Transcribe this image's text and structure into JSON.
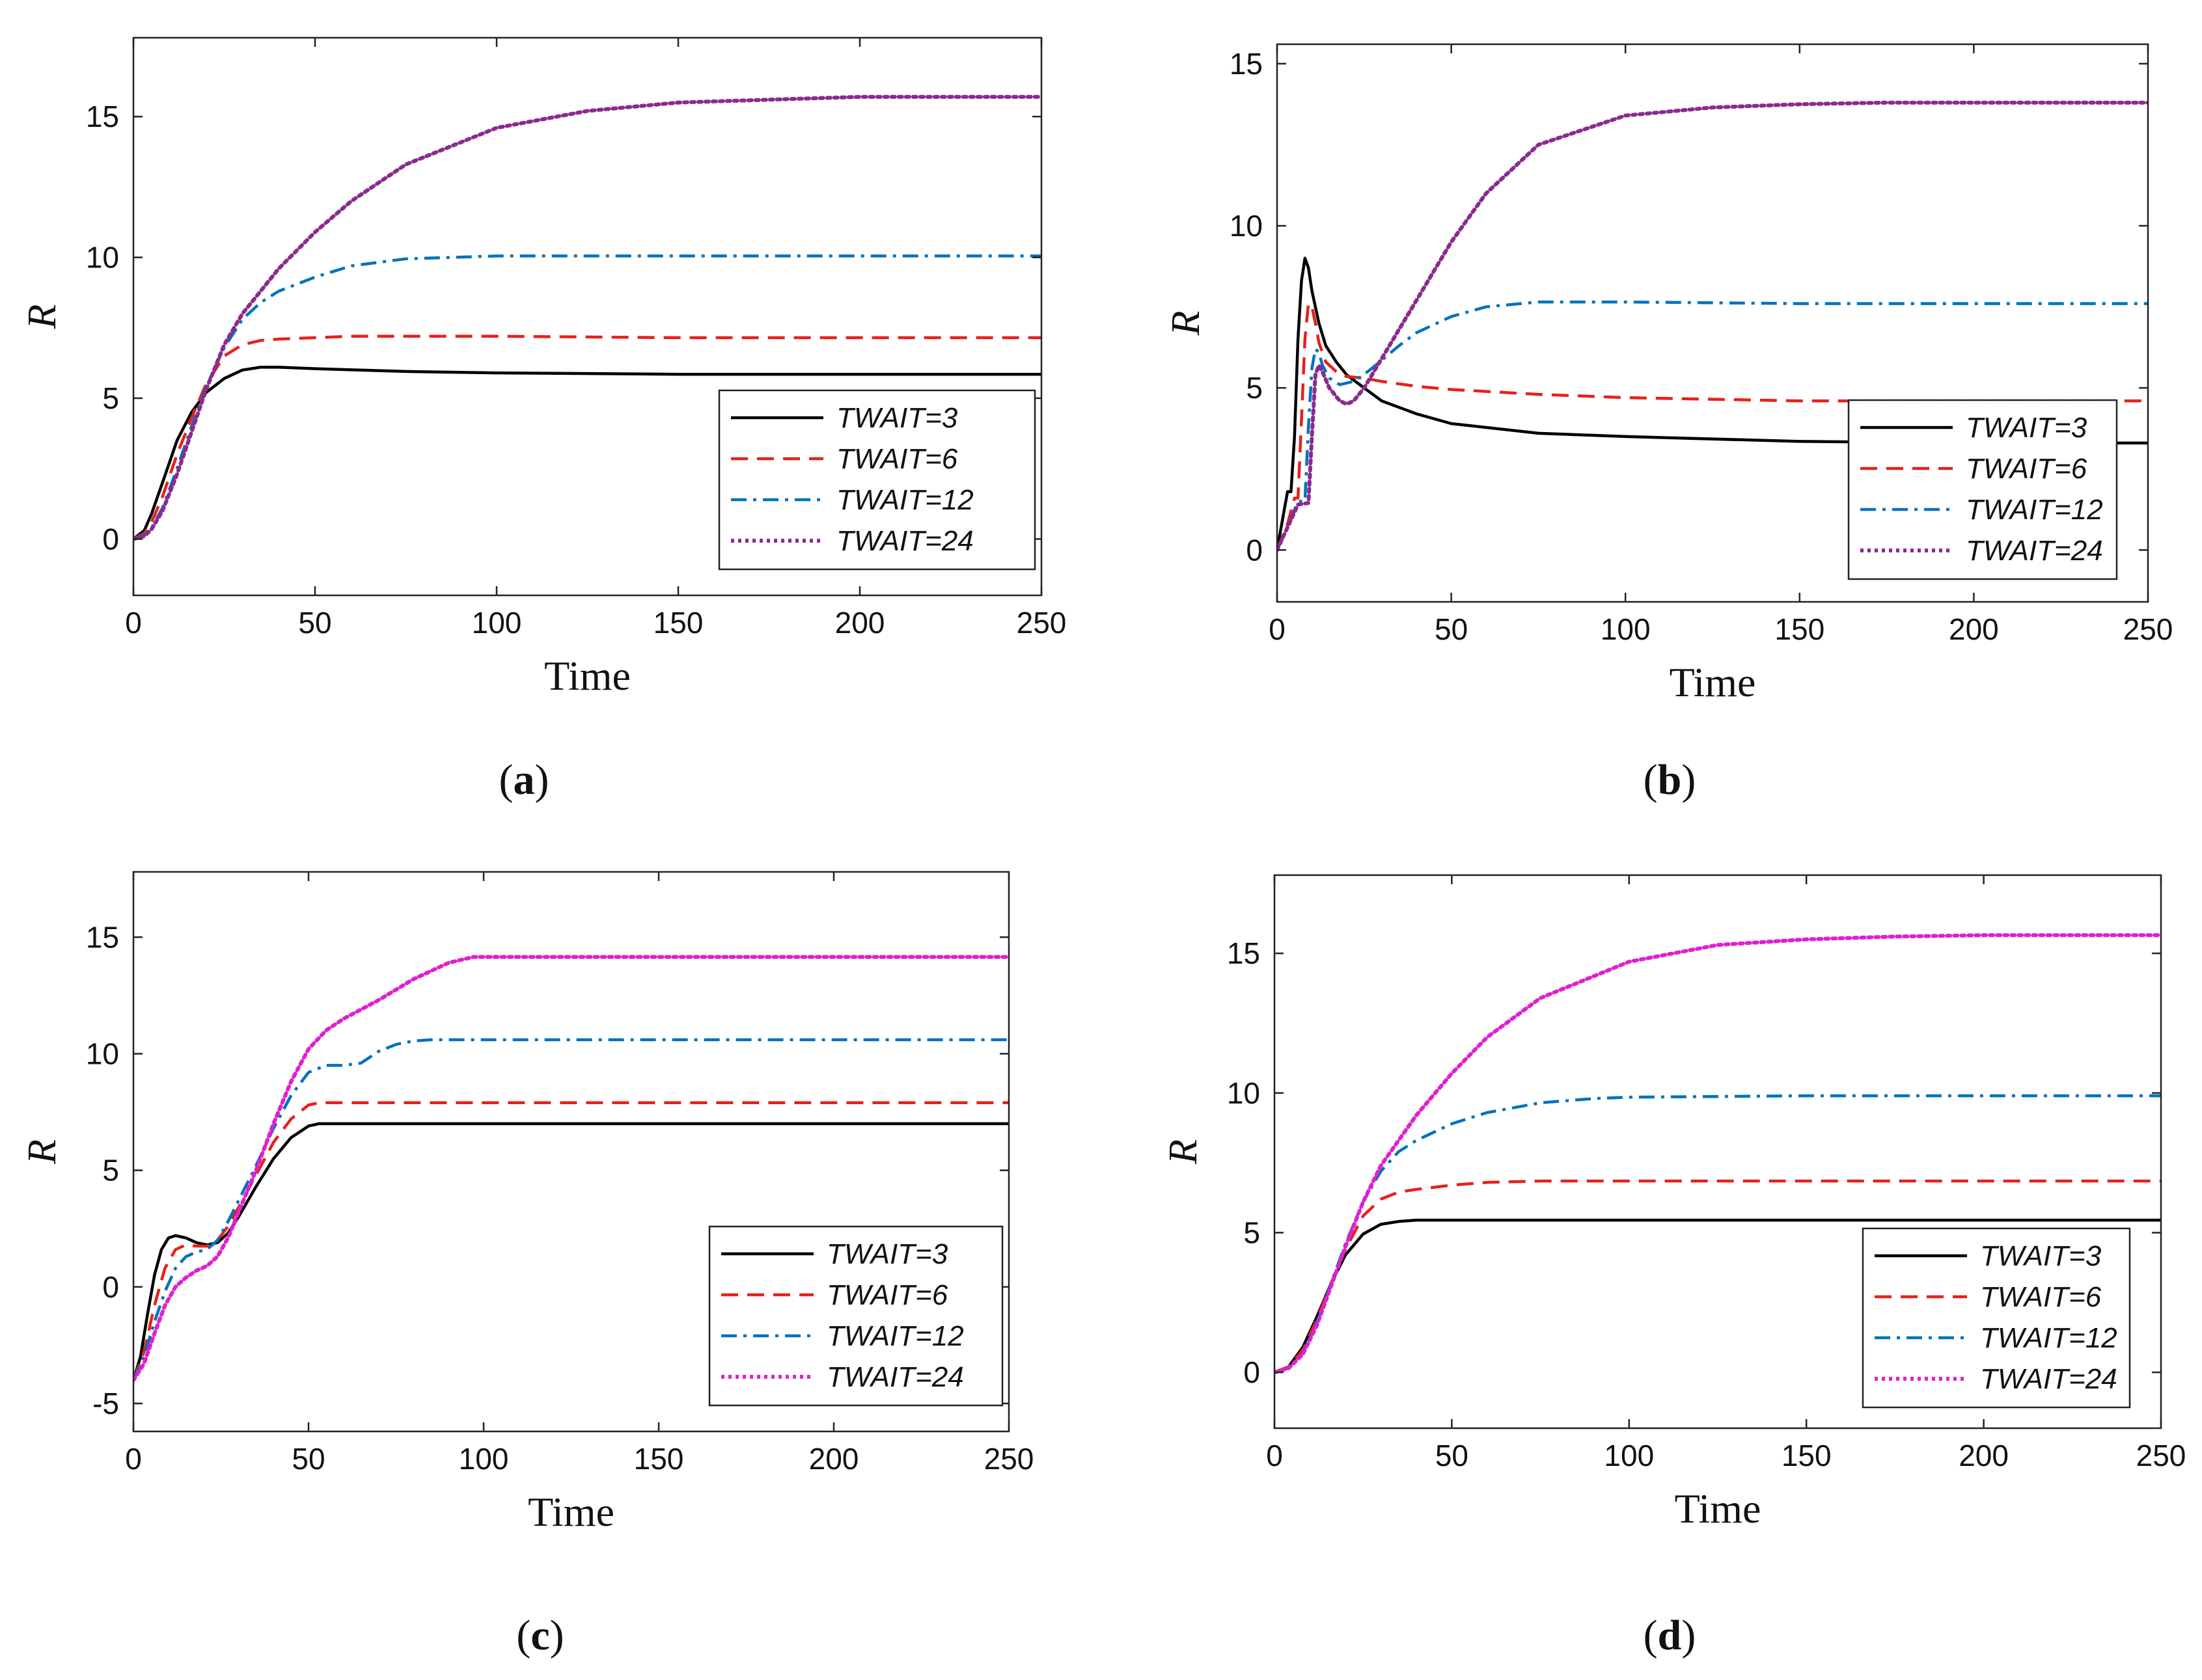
{
  "chart_data": [
    {
      "panel": "(a)",
      "panel_letter": "a",
      "type": "line",
      "title": "",
      "xlabel": "Time",
      "ylabel": "R",
      "xlim": [
        0,
        250
      ],
      "ylim": [
        -2,
        17.8
      ],
      "xticks": [
        0,
        50,
        100,
        150,
        200,
        250
      ],
      "yticks": [
        0,
        5,
        10,
        15
      ],
      "legend_position": "bottom-right",
      "series": [
        {
          "name": "TWAIT=3",
          "color": "#000000",
          "style": "solid",
          "x": [
            0,
            3,
            5,
            8,
            12,
            16,
            20,
            25,
            30,
            35,
            40,
            50,
            75,
            100,
            150,
            200,
            250
          ],
          "y": [
            0,
            0.3,
            0.9,
            2.0,
            3.5,
            4.5,
            5.2,
            5.7,
            6.0,
            6.1,
            6.1,
            6.05,
            5.95,
            5.9,
            5.85,
            5.85,
            5.85
          ]
        },
        {
          "name": "TWAIT=6",
          "color": "#e8201a",
          "style": "dashed",
          "x": [
            0,
            3,
            5,
            8,
            12,
            16,
            20,
            25,
            30,
            35,
            40,
            50,
            60,
            75,
            100,
            150,
            200,
            250
          ],
          "y": [
            0,
            0.2,
            0.6,
            1.5,
            3.0,
            4.3,
            5.5,
            6.5,
            6.9,
            7.05,
            7.1,
            7.15,
            7.2,
            7.2,
            7.2,
            7.15,
            7.15,
            7.15
          ]
        },
        {
          "name": "TWAIT=12",
          "color": "#0072bd",
          "style": "dashdot",
          "x": [
            0,
            3,
            5,
            8,
            12,
            16,
            20,
            25,
            30,
            35,
            40,
            50,
            60,
            75,
            100,
            125,
            150,
            200,
            250
          ],
          "y": [
            0,
            0.15,
            0.4,
            1.1,
            2.5,
            4.0,
            5.4,
            6.8,
            7.8,
            8.4,
            8.8,
            9.3,
            9.7,
            9.95,
            10.05,
            10.05,
            10.05,
            10.05,
            10.05
          ]
        },
        {
          "name": "TWAIT=24",
          "color": "#8b2a8f",
          "style": "dotted",
          "x": [
            0,
            3,
            5,
            8,
            12,
            16,
            20,
            25,
            30,
            40,
            50,
            60,
            75,
            100,
            125,
            150,
            175,
            200,
            225,
            250
          ],
          "y": [
            0,
            0.1,
            0.35,
            1.0,
            2.3,
            3.8,
            5.3,
            6.9,
            8.0,
            9.6,
            10.9,
            12.0,
            13.3,
            14.6,
            15.2,
            15.5,
            15.6,
            15.7,
            15.7,
            15.7
          ]
        }
      ]
    },
    {
      "panel": "(b)",
      "panel_letter": "b",
      "type": "line",
      "title": "",
      "xlabel": "Time",
      "ylabel": "R",
      "xlim": [
        0,
        250
      ],
      "ylim": [
        -1.6,
        15.6
      ],
      "xticks": [
        0,
        50,
        100,
        150,
        200,
        250
      ],
      "yticks": [
        0,
        5,
        10,
        15
      ],
      "legend_position": "bottom-right",
      "series": [
        {
          "name": "TWAIT=3",
          "color": "#000000",
          "style": "solid",
          "x": [
            0,
            2,
            3,
            4,
            5,
            6,
            7,
            8,
            9,
            10,
            12,
            14,
            17,
            20,
            25,
            30,
            40,
            50,
            75,
            100,
            150,
            200,
            250
          ],
          "y": [
            0,
            1.2,
            1.8,
            1.8,
            3.5,
            6.5,
            8.3,
            9.0,
            8.7,
            8.0,
            7.0,
            6.3,
            5.8,
            5.4,
            5.0,
            4.6,
            4.2,
            3.9,
            3.6,
            3.5,
            3.35,
            3.3,
            3.3
          ]
        },
        {
          "name": "TWAIT=6",
          "color": "#e8201a",
          "style": "dashed",
          "x": [
            0,
            3,
            5,
            6,
            7,
            8,
            9,
            10,
            11,
            12,
            14,
            17,
            20,
            25,
            30,
            40,
            50,
            75,
            100,
            150,
            200,
            250
          ],
          "y": [
            0,
            0.8,
            1.6,
            1.6,
            4.0,
            6.5,
            7.6,
            7.5,
            7.0,
            6.4,
            5.8,
            5.5,
            5.35,
            5.3,
            5.2,
            5.05,
            4.95,
            4.8,
            4.7,
            4.6,
            4.6,
            4.6
          ]
        },
        {
          "name": "TWAIT=12",
          "color": "#0072bd",
          "style": "dashdot",
          "x": [
            0,
            3,
            6,
            8,
            9,
            10,
            11,
            12,
            13,
            15,
            18,
            22,
            26,
            30,
            35,
            40,
            50,
            60,
            75,
            100,
            150,
            200,
            250
          ],
          "y": [
            0,
            0.7,
            1.5,
            1.5,
            3.8,
            5.6,
            6.2,
            6.1,
            5.7,
            5.3,
            5.1,
            5.2,
            5.5,
            5.85,
            6.3,
            6.7,
            7.2,
            7.5,
            7.65,
            7.65,
            7.6,
            7.6,
            7.6
          ]
        },
        {
          "name": "TWAIT=24",
          "color": "#8b2a8f",
          "style": "dotted",
          "x": [
            0,
            3,
            6,
            9,
            10,
            11,
            12,
            13,
            15,
            18,
            20,
            22,
            25,
            30,
            40,
            50,
            60,
            75,
            100,
            125,
            150,
            175,
            200,
            250
          ],
          "y": [
            0,
            0.7,
            1.4,
            1.45,
            3.5,
            5.4,
            5.7,
            5.5,
            5.0,
            4.6,
            4.5,
            4.6,
            5.0,
            5.9,
            7.7,
            9.5,
            11.0,
            12.5,
            13.4,
            13.65,
            13.75,
            13.8,
            13.8,
            13.8
          ]
        }
      ]
    },
    {
      "panel": "(c)",
      "panel_letter": "c",
      "type": "line",
      "title": "",
      "xlabel": "Time",
      "ylabel": "R",
      "xlim": [
        0,
        250
      ],
      "ylim": [
        -6.2,
        17.8
      ],
      "xticks": [
        0,
        50,
        100,
        150,
        200,
        250
      ],
      "yticks": [
        -5,
        0,
        5,
        10,
        15
      ],
      "legend_position": "bottom-right",
      "series": [
        {
          "name": "TWAIT=3",
          "color": "#000000",
          "style": "solid",
          "x": [
            0,
            2,
            4,
            6,
            8,
            10,
            12,
            15,
            18,
            21,
            24,
            27,
            30,
            35,
            40,
            45,
            50,
            53,
            60,
            100,
            150,
            200,
            250
          ],
          "y": [
            -4.0,
            -3.0,
            -1.2,
            0.5,
            1.6,
            2.1,
            2.2,
            2.1,
            1.9,
            1.8,
            1.9,
            2.3,
            3.0,
            4.3,
            5.5,
            6.4,
            6.9,
            7.0,
            7.0,
            7.0,
            7.0,
            7.0,
            7.0
          ]
        },
        {
          "name": "TWAIT=6",
          "color": "#e8201a",
          "style": "dashed",
          "x": [
            0,
            3,
            6,
            9,
            12,
            15,
            18,
            21,
            24,
            27,
            30,
            35,
            40,
            45,
            50,
            53,
            60,
            100,
            150,
            200,
            250
          ],
          "y": [
            -4.0,
            -2.8,
            -0.8,
            0.8,
            1.6,
            1.8,
            1.75,
            1.75,
            2.0,
            2.6,
            3.4,
            4.8,
            6.2,
            7.2,
            7.8,
            7.9,
            7.9,
            7.9,
            7.9,
            7.9,
            7.9
          ]
        },
        {
          "name": "TWAIT=12",
          "color": "#0072bd",
          "style": "dashdot",
          "x": [
            0,
            3,
            6,
            9,
            12,
            15,
            18,
            21,
            24,
            27,
            30,
            35,
            40,
            45,
            50,
            55,
            60,
            65,
            70,
            75,
            80,
            85,
            100,
            150,
            200,
            250
          ],
          "y": [
            -4.0,
            -3.0,
            -1.5,
            -0.2,
            0.8,
            1.3,
            1.5,
            1.6,
            2.0,
            2.8,
            3.7,
            5.2,
            6.8,
            8.2,
            9.2,
            9.5,
            9.5,
            9.6,
            10.1,
            10.4,
            10.55,
            10.6,
            10.6,
            10.6,
            10.6,
            10.6
          ]
        },
        {
          "name": "TWAIT=24",
          "color": "#e020d0",
          "style": "dotted",
          "x": [
            0,
            3,
            6,
            9,
            12,
            15,
            18,
            21,
            24,
            27,
            30,
            35,
            40,
            45,
            50,
            55,
            60,
            70,
            80,
            90,
            97,
            100,
            150,
            200,
            250
          ],
          "y": [
            -4.0,
            -3.3,
            -2.0,
            -0.8,
            0.0,
            0.4,
            0.7,
            0.9,
            1.3,
            2.1,
            3.2,
            5.0,
            7.0,
            8.8,
            10.2,
            11.0,
            11.5,
            12.3,
            13.2,
            13.9,
            14.15,
            14.15,
            14.15,
            14.15,
            14.15
          ]
        }
      ]
    },
    {
      "panel": "(d)",
      "panel_letter": "d",
      "type": "line",
      "title": "",
      "xlabel": "Time",
      "ylabel": "R",
      "xlim": [
        0,
        250
      ],
      "ylim": [
        -2,
        17.8
      ],
      "xticks": [
        0,
        50,
        100,
        150,
        200,
        250
      ],
      "yticks": [
        0,
        5,
        10,
        15
      ],
      "legend_position": "bottom-right",
      "series": [
        {
          "name": "TWAIT=3",
          "color": "#000000",
          "style": "solid",
          "x": [
            0,
            4,
            8,
            12,
            16,
            20,
            25,
            30,
            35,
            40,
            50,
            75,
            100,
            150,
            200,
            250
          ],
          "y": [
            0,
            0.2,
            0.9,
            2.0,
            3.2,
            4.2,
            4.95,
            5.3,
            5.4,
            5.45,
            5.45,
            5.45,
            5.45,
            5.45,
            5.45,
            5.45
          ]
        },
        {
          "name": "TWAIT=6",
          "color": "#e8201a",
          "style": "dashed",
          "x": [
            0,
            4,
            8,
            12,
            16,
            20,
            25,
            30,
            35,
            40,
            50,
            60,
            75,
            100,
            150,
            200,
            250
          ],
          "y": [
            0,
            0.2,
            0.8,
            1.9,
            3.2,
            4.4,
            5.6,
            6.2,
            6.45,
            6.55,
            6.7,
            6.8,
            6.85,
            6.85,
            6.85,
            6.85,
            6.85
          ]
        },
        {
          "name": "TWAIT=12",
          "color": "#0072bd",
          "style": "dashdot",
          "x": [
            0,
            4,
            8,
            12,
            16,
            20,
            25,
            30,
            35,
            40,
            50,
            60,
            75,
            90,
            100,
            150,
            200,
            250
          ],
          "y": [
            0,
            0.15,
            0.7,
            1.8,
            3.2,
            4.6,
            6.1,
            7.2,
            7.9,
            8.3,
            8.9,
            9.3,
            9.65,
            9.8,
            9.85,
            9.9,
            9.9,
            9.9
          ]
        },
        {
          "name": "TWAIT=24",
          "color": "#e020d0",
          "style": "dotted",
          "x": [
            0,
            4,
            8,
            12,
            16,
            20,
            25,
            30,
            40,
            50,
            60,
            75,
            100,
            125,
            150,
            175,
            200,
            250
          ],
          "y": [
            0,
            0.15,
            0.65,
            1.7,
            3.1,
            4.5,
            6.1,
            7.4,
            9.2,
            10.7,
            12.0,
            13.4,
            14.7,
            15.3,
            15.5,
            15.6,
            15.65,
            15.65
          ]
        }
      ]
    }
  ]
}
